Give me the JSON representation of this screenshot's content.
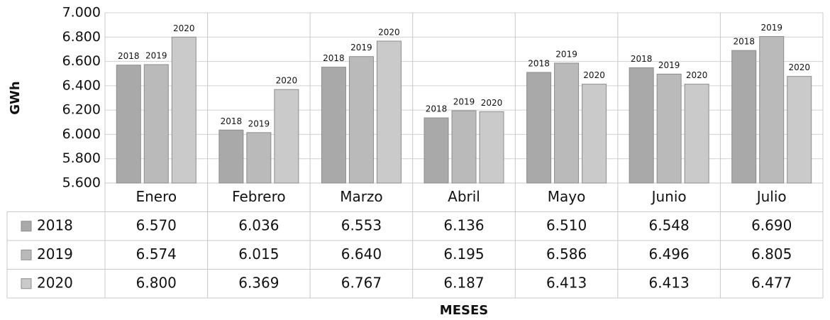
{
  "chart_data": {
    "type": "bar",
    "y_label": "GWh",
    "x_label": "MESES",
    "categories": [
      "Enero",
      "Febrero",
      "Marzo",
      "Abril",
      "Mayo",
      "Junio",
      "Julio"
    ],
    "series": [
      {
        "name": "2018",
        "color": "#a9a9a9",
        "values": [
          6570,
          6036,
          6553,
          6136,
          6510,
          6548,
          6690
        ],
        "value_labels": [
          "6.570",
          "6.036",
          "6.553",
          "6.136",
          "6.510",
          "6.548",
          "6.690"
        ]
      },
      {
        "name": "2019",
        "color": "#bababa",
        "values": [
          6574,
          6015,
          6640,
          6195,
          6586,
          6496,
          6805
        ],
        "value_labels": [
          "6.574",
          "6.015",
          "6.640",
          "6.195",
          "6.586",
          "6.496",
          "6.805"
        ]
      },
      {
        "name": "2020",
        "color": "#cacaca",
        "values": [
          6800,
          6369,
          6767,
          6187,
          6413,
          6413,
          6477
        ],
        "value_labels": [
          "6.800",
          "6.369",
          "6.767",
          "6.187",
          "6.413",
          "6.413",
          "6.477"
        ]
      }
    ],
    "ylim": [
      5600,
      7000
    ],
    "yticks": [
      {
        "value": 5600,
        "label": "5.600"
      },
      {
        "value": 5800,
        "label": "5.800"
      },
      {
        "value": 6000,
        "label": "6.000"
      },
      {
        "value": 6200,
        "label": "6.200"
      },
      {
        "value": 6400,
        "label": "6.400"
      },
      {
        "value": 6600,
        "label": "6.600"
      },
      {
        "value": 6800,
        "label": "6.800"
      },
      {
        "value": 7000,
        "label": "7.000"
      }
    ],
    "grid": true
  }
}
